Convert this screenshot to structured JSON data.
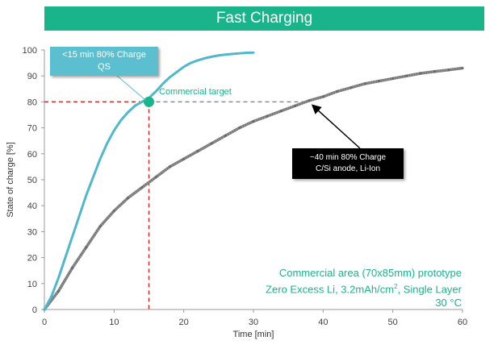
{
  "title": "Fast Charging",
  "chart_data": {
    "type": "line",
    "xlabel": "Time [min]",
    "ylabel": "State of charge [%]",
    "xlim": [
      0,
      60
    ],
    "ylim": [
      0,
      100
    ],
    "xticks": [
      0,
      10,
      20,
      30,
      40,
      50,
      60
    ],
    "yticks": [
      0,
      10,
      20,
      30,
      40,
      50,
      60,
      70,
      80,
      90,
      100
    ],
    "grid": false,
    "series": [
      {
        "color": "#4fb8cc",
        "x": [
          0,
          1,
          2,
          3,
          4,
          5,
          6,
          7,
          8,
          9,
          10,
          11,
          12,
          13,
          14,
          15,
          16,
          17,
          18,
          19,
          20,
          21,
          22,
          23,
          24,
          25,
          26,
          27,
          28,
          29,
          30
        ],
        "y": [
          0,
          5,
          12,
          20,
          28,
          36,
          44,
          51,
          58,
          64,
          69,
          73,
          76,
          78.5,
          80,
          81.5,
          84,
          87,
          89.5,
          91.5,
          93.5,
          95,
          96,
          96.8,
          97.4,
          97.9,
          98.2,
          98.5,
          98.7,
          98.9,
          99
        ]
      },
      {
        "color": "#8c8c8c",
        "x": [
          0,
          2,
          4,
          6,
          8,
          10,
          12,
          14,
          16,
          18,
          20,
          22,
          24,
          26,
          28,
          30,
          32,
          34,
          36,
          38,
          40,
          42,
          44,
          46,
          48,
          50,
          52,
          54,
          56,
          58,
          60
        ],
        "y": [
          0,
          7,
          16,
          24,
          32,
          38,
          43,
          47,
          51,
          55,
          58,
          61,
          64,
          67,
          70,
          72.5,
          74.5,
          76.5,
          78.5,
          80.5,
          82,
          84,
          85.5,
          87,
          88,
          89,
          90,
          91,
          91.7,
          92.3,
          93
        ]
      }
    ],
    "target": {
      "label": "Commercial target",
      "x": 15,
      "y": 80,
      "color": "#1ab48a"
    },
    "reference_lines": {
      "color": "#d62a2a",
      "grey_color": "#8c8c8c"
    },
    "annotations": {
      "qs": {
        "line1": "<15 min 80% Charge",
        "line2": "QS",
        "point_to": [
          15,
          80
        ]
      },
      "liion": {
        "line1": "~40 min 80% Charge",
        "line2": "C/Si anode, Li-Ion",
        "point_to": [
          38,
          80
        ]
      }
    },
    "note": {
      "line1": "Commercial area (70x85mm) prototype",
      "line2a": "Zero Excess Li, 3.2mAh/cm",
      "sup": "2",
      "line2b": ", Single Layer",
      "line3": "30 °C"
    }
  }
}
